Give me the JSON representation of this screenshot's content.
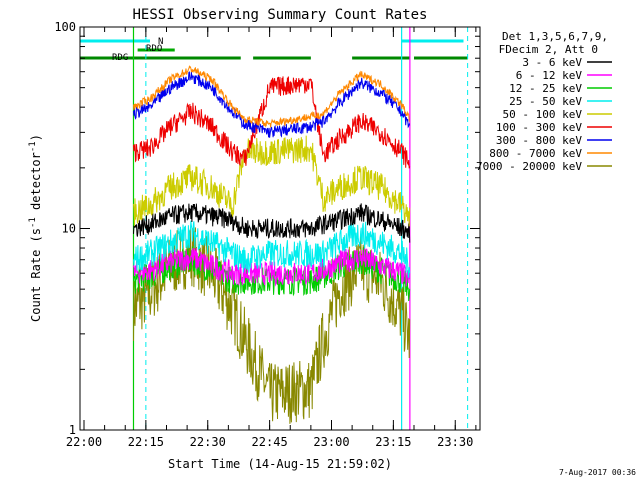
{
  "chart_data": {
    "type": "line",
    "title": "HESSI Observing Summary Count Rates",
    "xlabel": "Start Time (14-Aug-15 21:59:02)",
    "ylabel_main": "Count Rate (s",
    "ylabel_sup1": "-1",
    "ylabel_mid": " detector",
    "ylabel_sup2": "-1",
    "ylabel_end": ")",
    "footer": "7-Aug-2017 00:36",
    "y_scale": "log",
    "ylim": [
      1,
      100
    ],
    "xlim": [
      "21:59:02",
      "23:36:00"
    ],
    "x_ticks": [
      "22:00",
      "22:15",
      "22:30",
      "22:45",
      "23:00",
      "23:15",
      "23:30"
    ],
    "y_ticks": [
      "1",
      "10",
      "100"
    ],
    "legend": {
      "position": "right",
      "header1": "Det 1,3,5,6,7,9,",
      "header2": "FDecim 2, Att 0",
      "entries": [
        {
          "label": "3 - 6 keV",
          "color": "#000000"
        },
        {
          "label": "6 - 12 keV",
          "color": "#ff00ff"
        },
        {
          "label": "12 - 25 keV",
          "color": "#00cc00"
        },
        {
          "label": "25 - 50 keV",
          "color": "#00eeee"
        },
        {
          "label": "50 - 100 keV",
          "color": "#cccc00"
        },
        {
          "label": "100 - 300 keV",
          "color": "#ee0000"
        },
        {
          "label": "300 - 800 keV",
          "color": "#0000ee"
        },
        {
          "label": "800 - 7000 keV",
          "color": "#ff8800"
        },
        {
          "label": "7000 - 20000 keV",
          "color": "#888800"
        }
      ]
    },
    "flags": [
      {
        "label": "N",
        "color": "#00eeee",
        "segments": [
          [
            "21:59",
            "22:16"
          ],
          [
            "23:17",
            "23:32"
          ]
        ],
        "level": 1
      },
      {
        "label": "RDO",
        "color": "#00aa00",
        "segments": [
          [
            "22:13",
            "22:22"
          ]
        ],
        "level": 2
      },
      {
        "label": "RDG",
        "color": "#008800",
        "segments": [
          [
            "21:59",
            "22:38"
          ],
          [
            "22:41",
            "22:55"
          ],
          [
            "23:05",
            "23:19"
          ],
          [
            "23:20",
            "23:33"
          ]
        ],
        "level": 3
      }
    ],
    "markers": {
      "solid": [
        {
          "time": "22:12",
          "color": "#00cc00"
        },
        {
          "time": "23:17",
          "color": "#00eeee"
        },
        {
          "time": "23:19",
          "color": "#ff00ff"
        }
      ],
      "dashed": [
        {
          "time": "22:15",
          "color": "#00eeee"
        },
        {
          "time": "23:33",
          "color": "#00eeee"
        }
      ]
    },
    "series": [
      {
        "name": "300 - 800 keV",
        "color": "#0000ee",
        "x": [
          "22:12",
          "22:16",
          "22:21",
          "22:26",
          "22:31",
          "22:36",
          "22:39",
          "22:45",
          "22:55",
          "22:58",
          "23:02",
          "23:07",
          "23:12",
          "23:17",
          "23:19"
        ],
        "y": [
          37,
          40,
          50,
          57,
          50,
          38,
          33,
          30,
          32,
          34,
          42,
          53,
          47,
          38,
          32
        ]
      },
      {
        "name": "800 - 7000 keV",
        "color": "#ff8800",
        "x": [
          "22:12",
          "22:16",
          "22:21",
          "22:26",
          "22:31",
          "22:36",
          "22:39",
          "22:45",
          "22:55",
          "22:58",
          "23:02",
          "23:07",
          "23:12",
          "23:17",
          "23:19"
        ],
        "y": [
          40,
          44,
          55,
          62,
          55,
          40,
          35,
          33,
          36,
          37,
          47,
          58,
          52,
          41,
          35
        ]
      },
      {
        "name": "100 - 300 keV",
        "color": "#ee0000",
        "x": [
          "22:12",
          "22:16",
          "22:21",
          "22:26",
          "22:31",
          "22:36",
          "22:39",
          "22:45",
          "22:55",
          "22:58",
          "23:02",
          "23:07",
          "23:12",
          "23:17",
          "23:19"
        ],
        "y": [
          24,
          25,
          32,
          38,
          32,
          24,
          22,
          50,
          53,
          23,
          28,
          34,
          30,
          24,
          21
        ]
      },
      {
        "name": "50 - 100 keV",
        "color": "#cccc00",
        "x": [
          "22:12",
          "22:16",
          "22:21",
          "22:26",
          "22:31",
          "22:36",
          "22:39",
          "22:45",
          "22:55",
          "22:58",
          "23:02",
          "23:07",
          "23:12",
          "23:17",
          "23:19"
        ],
        "y": [
          12,
          13,
          16,
          18,
          16,
          13,
          24,
          24,
          25,
          14,
          16,
          18,
          16,
          13,
          11
        ]
      },
      {
        "name": "3 - 6 keV",
        "color": "#000000",
        "x": [
          "22:12",
          "22:16",
          "22:21",
          "22:26",
          "22:31",
          "22:36",
          "22:39",
          "22:45",
          "22:55",
          "22:58",
          "23:02",
          "23:07",
          "23:12",
          "23:17",
          "23:19"
        ],
        "y": [
          10,
          10.5,
          11.5,
          12,
          11.5,
          11,
          10,
          10,
          10,
          10.5,
          11,
          12,
          11,
          10,
          9.5
        ]
      },
      {
        "name": "25 - 50 keV",
        "color": "#00eeee",
        "x": [
          "22:12",
          "22:16",
          "22:21",
          "22:26",
          "22:31",
          "22:36",
          "22:39",
          "22:45",
          "22:55",
          "22:58",
          "23:02",
          "23:07",
          "23:12",
          "23:17",
          "23:19"
        ],
        "y": [
          7,
          7.5,
          8.5,
          9.5,
          8.5,
          7.5,
          7,
          7.5,
          7.5,
          7.5,
          8.5,
          9.5,
          8.5,
          7.5,
          6.5
        ]
      },
      {
        "name": "6 - 12 keV",
        "color": "#ff00ff",
        "x": [
          "22:12",
          "22:16",
          "22:21",
          "22:26",
          "22:31",
          "22:36",
          "22:39",
          "22:45",
          "22:55",
          "22:58",
          "23:02",
          "23:07",
          "23:12",
          "23:17",
          "23:19"
        ],
        "y": [
          6,
          6.2,
          6.8,
          7.2,
          6.5,
          6,
          6,
          6,
          6,
          6.2,
          6.8,
          7.2,
          6.5,
          6,
          5.5
        ]
      },
      {
        "name": "12 - 25 keV",
        "color": "#00cc00",
        "x": [
          "22:12",
          "22:16",
          "22:21",
          "22:26",
          "22:31",
          "22:36",
          "22:39",
          "22:45",
          "22:55",
          "22:58",
          "23:02",
          "23:07",
          "23:12",
          "23:17",
          "23:19"
        ],
        "y": [
          5.5,
          5.8,
          6.5,
          7,
          6.2,
          5.5,
          5.5,
          5.5,
          5.5,
          5.8,
          6.5,
          7,
          6.2,
          5.5,
          5
        ]
      },
      {
        "name": "7000 - 20000 keV",
        "color": "#888800",
        "x": [
          "22:12",
          "22:16",
          "22:21",
          "22:26",
          "22:31",
          "22:36",
          "22:39",
          "22:45",
          "22:55",
          "22:58",
          "23:02",
          "23:07",
          "23:12",
          "23:17",
          "23:19"
        ],
        "y": [
          4,
          4.8,
          6.5,
          7.5,
          6,
          4,
          2.8,
          1.5,
          1.6,
          2.8,
          5,
          6.5,
          5.5,
          3.8,
          2.8
        ]
      }
    ]
  }
}
